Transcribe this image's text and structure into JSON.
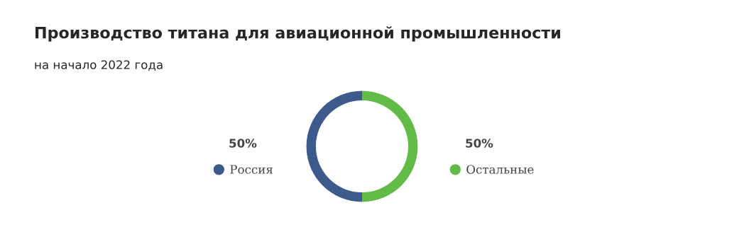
{
  "chart_data": {
    "type": "donut",
    "title": "Производство титана для авиационной промышленности",
    "subtitle": "на начало 2022 года",
    "categories": [
      "Россия",
      "Остальные"
    ],
    "values": [
      50,
      50
    ],
    "colors": [
      "#3d5a8c",
      "#62bb46"
    ],
    "value_labels": [
      "50%",
      "50%"
    ],
    "legend": "bottom right"
  }
}
